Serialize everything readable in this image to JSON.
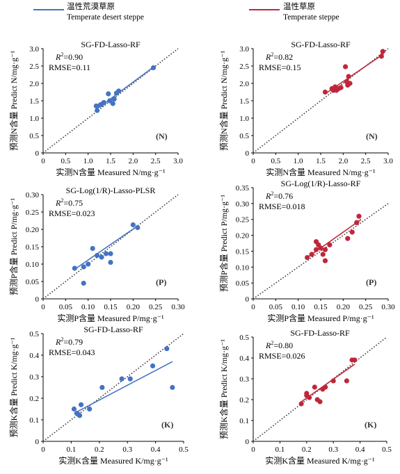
{
  "legend": [
    {
      "label_cn": "温性荒漠草原",
      "label_en": "Temperate desert steppe",
      "color": "#4472c4"
    },
    {
      "label_cn": "温性草原",
      "label_en": "Temperate steppe",
      "color": "#c0263a"
    }
  ],
  "chart_data": [
    {
      "type": "scatter",
      "id": "N-desert",
      "title": "SG-FD-Lasso-RF",
      "r2_text": "=0.90",
      "rmse_text": "RMSE=0.11",
      "tag": "(N)",
      "xlabel": "实测N含量 Measured N/mg·g⁻¹",
      "ylabel": "预测N含量 Predict N/mg·g⁻¹",
      "xlim": [
        0,
        3.0
      ],
      "ylim": [
        0,
        3.0
      ],
      "xticks": [
        "0",
        "0.5",
        "1.0",
        "1.5",
        "2.0",
        "2.5",
        "3.0"
      ],
      "yticks": [
        "0",
        "0.5",
        "1.0",
        "1.5",
        "2.0",
        "2.5",
        "3.0"
      ],
      "color": "#4472c4",
      "points": [
        [
          1.18,
          1.35
        ],
        [
          1.2,
          1.22
        ],
        [
          1.27,
          1.38
        ],
        [
          1.3,
          1.4
        ],
        [
          1.35,
          1.45
        ],
        [
          1.45,
          1.7
        ],
        [
          1.48,
          1.5
        ],
        [
          1.55,
          1.42
        ],
        [
          1.58,
          1.55
        ],
        [
          1.63,
          1.72
        ],
        [
          1.68,
          1.78
        ],
        [
          2.45,
          2.45
        ]
      ],
      "fit": [
        [
          1.18,
          1.25
        ],
        [
          2.45,
          2.47
        ]
      ]
    },
    {
      "type": "scatter",
      "id": "N-steppe",
      "title": "SG-FD-Lasso-RF",
      "r2_text": "=0.82",
      "rmse_text": "RMSE=0.15",
      "tag": "(N)",
      "xlabel": "实测N含量 Measured N/mg·g⁻¹",
      "ylabel": "预测N含量 Predict N/mg·g⁻¹",
      "xlim": [
        0,
        3.0
      ],
      "ylim": [
        0,
        3.0
      ],
      "xticks": [
        "0",
        "0.5",
        "1.0",
        "1.5",
        "2.0",
        "2.5",
        "3.0"
      ],
      "yticks": [
        "0",
        "0.5",
        "1.0",
        "1.5",
        "2.0",
        "2.5",
        "3.0"
      ],
      "color": "#c0263a",
      "points": [
        [
          1.6,
          1.75
        ],
        [
          1.75,
          1.85
        ],
        [
          1.78,
          1.8
        ],
        [
          1.82,
          1.9
        ],
        [
          1.85,
          1.8
        ],
        [
          1.9,
          1.85
        ],
        [
          1.95,
          1.88
        ],
        [
          2.05,
          2.48
        ],
        [
          2.08,
          2.05
        ],
        [
          2.1,
          1.95
        ],
        [
          2.12,
          2.2
        ],
        [
          2.15,
          2.0
        ],
        [
          2.85,
          2.78
        ],
        [
          2.88,
          2.92
        ]
      ],
      "fit": [
        [
          1.6,
          1.7
        ],
        [
          2.9,
          2.85
        ]
      ]
    },
    {
      "type": "scatter",
      "id": "P-desert",
      "title": "SG-Log(1/R)-Lasso-PLSR",
      "r2_text": "=0.75",
      "rmse_text": "RMSE=0.023",
      "tag": "(P)",
      "xlabel": "实测P含量 Measured P/mg·g⁻¹",
      "ylabel": "预测P含量 Predict P/mg·g⁻¹",
      "xlim": [
        0,
        0.3
      ],
      "ylim": [
        0,
        0.3
      ],
      "xticks": [
        "0",
        "0.05",
        "0.10",
        "0.15",
        "0.20",
        "0.25",
        "0.30"
      ],
      "yticks": [
        "0",
        "0.05",
        "0.10",
        "0.15",
        "0.20",
        "0.25",
        "0.30"
      ],
      "color": "#4472c4",
      "points": [
        [
          0.07,
          0.088
        ],
        [
          0.09,
          0.045
        ],
        [
          0.09,
          0.092
        ],
        [
          0.1,
          0.1
        ],
        [
          0.11,
          0.145
        ],
        [
          0.12,
          0.125
        ],
        [
          0.13,
          0.12
        ],
        [
          0.14,
          0.13
        ],
        [
          0.15,
          0.105
        ],
        [
          0.15,
          0.13
        ],
        [
          0.2,
          0.213
        ],
        [
          0.21,
          0.205
        ]
      ],
      "fit": [
        [
          0.07,
          0.085
        ],
        [
          0.21,
          0.21
        ]
      ]
    },
    {
      "type": "scatter",
      "id": "P-steppe",
      "title": "SG-Log(1/R)-Lasso-RF",
      "r2_text": "=0.76",
      "rmse_text": "RMSE=0.018",
      "tag": "(P)",
      "xlabel": "实测P含量 Measured P/mg·g⁻¹",
      "ylabel": "预测P含量 Predict P/mg·g⁻¹",
      "xlim": [
        0,
        0.3
      ],
      "ylim": [
        0,
        0.35
      ],
      "xticks": [
        "0",
        "0.05",
        "0.10",
        "0.15",
        "0.20",
        "0.25",
        "0.30"
      ],
      "yticks": [
        "0",
        "0.05",
        "0.10",
        "0.15",
        "0.20",
        "0.25",
        "0.30",
        "0.35"
      ],
      "color": "#c0263a",
      "points": [
        [
          0.12,
          0.13
        ],
        [
          0.13,
          0.14
        ],
        [
          0.14,
          0.155
        ],
        [
          0.14,
          0.18
        ],
        [
          0.145,
          0.17
        ],
        [
          0.15,
          0.16
        ],
        [
          0.155,
          0.14
        ],
        [
          0.16,
          0.12
        ],
        [
          0.16,
          0.155
        ],
        [
          0.17,
          0.17
        ],
        [
          0.21,
          0.19
        ],
        [
          0.22,
          0.21
        ],
        [
          0.23,
          0.24
        ],
        [
          0.235,
          0.26
        ]
      ],
      "fit": [
        [
          0.12,
          0.13
        ],
        [
          0.24,
          0.25
        ]
      ]
    },
    {
      "type": "scatter",
      "id": "K-desert",
      "title": "SG-FD-Lasso-RF",
      "r2_text": "=0.79",
      "rmse_text": "RMSE=0.043",
      "tag": "(K)",
      "xlabel": "实测K含量 Measured K/mg·g⁻¹",
      "ylabel": "预测K含量 Predict K/mg·g⁻¹",
      "xlim": [
        0,
        0.5
      ],
      "ylim": [
        0,
        0.5
      ],
      "xticks": [
        "0",
        "0.1",
        "0.2",
        "0.3",
        "0.4",
        "0.5"
      ],
      "yticks": [
        "0",
        "0.1",
        "0.2",
        "0.3",
        "0.4",
        "0.5"
      ],
      "color": "#4472c4",
      "points": [
        [
          0.11,
          0.15
        ],
        [
          0.12,
          0.13
        ],
        [
          0.125,
          0.125
        ],
        [
          0.13,
          0.12
        ],
        [
          0.135,
          0.17
        ],
        [
          0.165,
          0.15
        ],
        [
          0.21,
          0.25
        ],
        [
          0.28,
          0.29
        ],
        [
          0.31,
          0.29
        ],
        [
          0.39,
          0.35
        ],
        [
          0.44,
          0.43
        ],
        [
          0.46,
          0.25
        ]
      ],
      "fit": [
        [
          0.11,
          0.13
        ],
        [
          0.46,
          0.37
        ]
      ]
    },
    {
      "type": "scatter",
      "id": "K-steppe",
      "title": "SG-FD-Lasso-RF",
      "r2_text": "=0.80",
      "rmse_text": "RMSE=0.026",
      "tag": "(K)",
      "xlabel": "实测K含量 Measured K/mg·g⁻¹",
      "ylabel": "预测K含量 Predict K/mg·g⁻¹",
      "xlim": [
        0,
        0.5
      ],
      "ylim": [
        0,
        0.5
      ],
      "xticks": [
        "0",
        "0.1",
        "0.2",
        "0.3",
        "0.4",
        "0.5"
      ],
      "yticks": [
        "0",
        "0.1",
        "0.2",
        "0.3",
        "0.4",
        "0.5"
      ],
      "color": "#c0263a",
      "points": [
        [
          0.18,
          0.18
        ],
        [
          0.2,
          0.22
        ],
        [
          0.2,
          0.23
        ],
        [
          0.21,
          0.21
        ],
        [
          0.23,
          0.26
        ],
        [
          0.24,
          0.2
        ],
        [
          0.25,
          0.19
        ],
        [
          0.26,
          0.25
        ],
        [
          0.27,
          0.26
        ],
        [
          0.3,
          0.29
        ],
        [
          0.35,
          0.29
        ],
        [
          0.37,
          0.39
        ],
        [
          0.38,
          0.39
        ]
      ],
      "fit": [
        [
          0.18,
          0.19
        ],
        [
          0.38,
          0.37
        ]
      ]
    }
  ]
}
